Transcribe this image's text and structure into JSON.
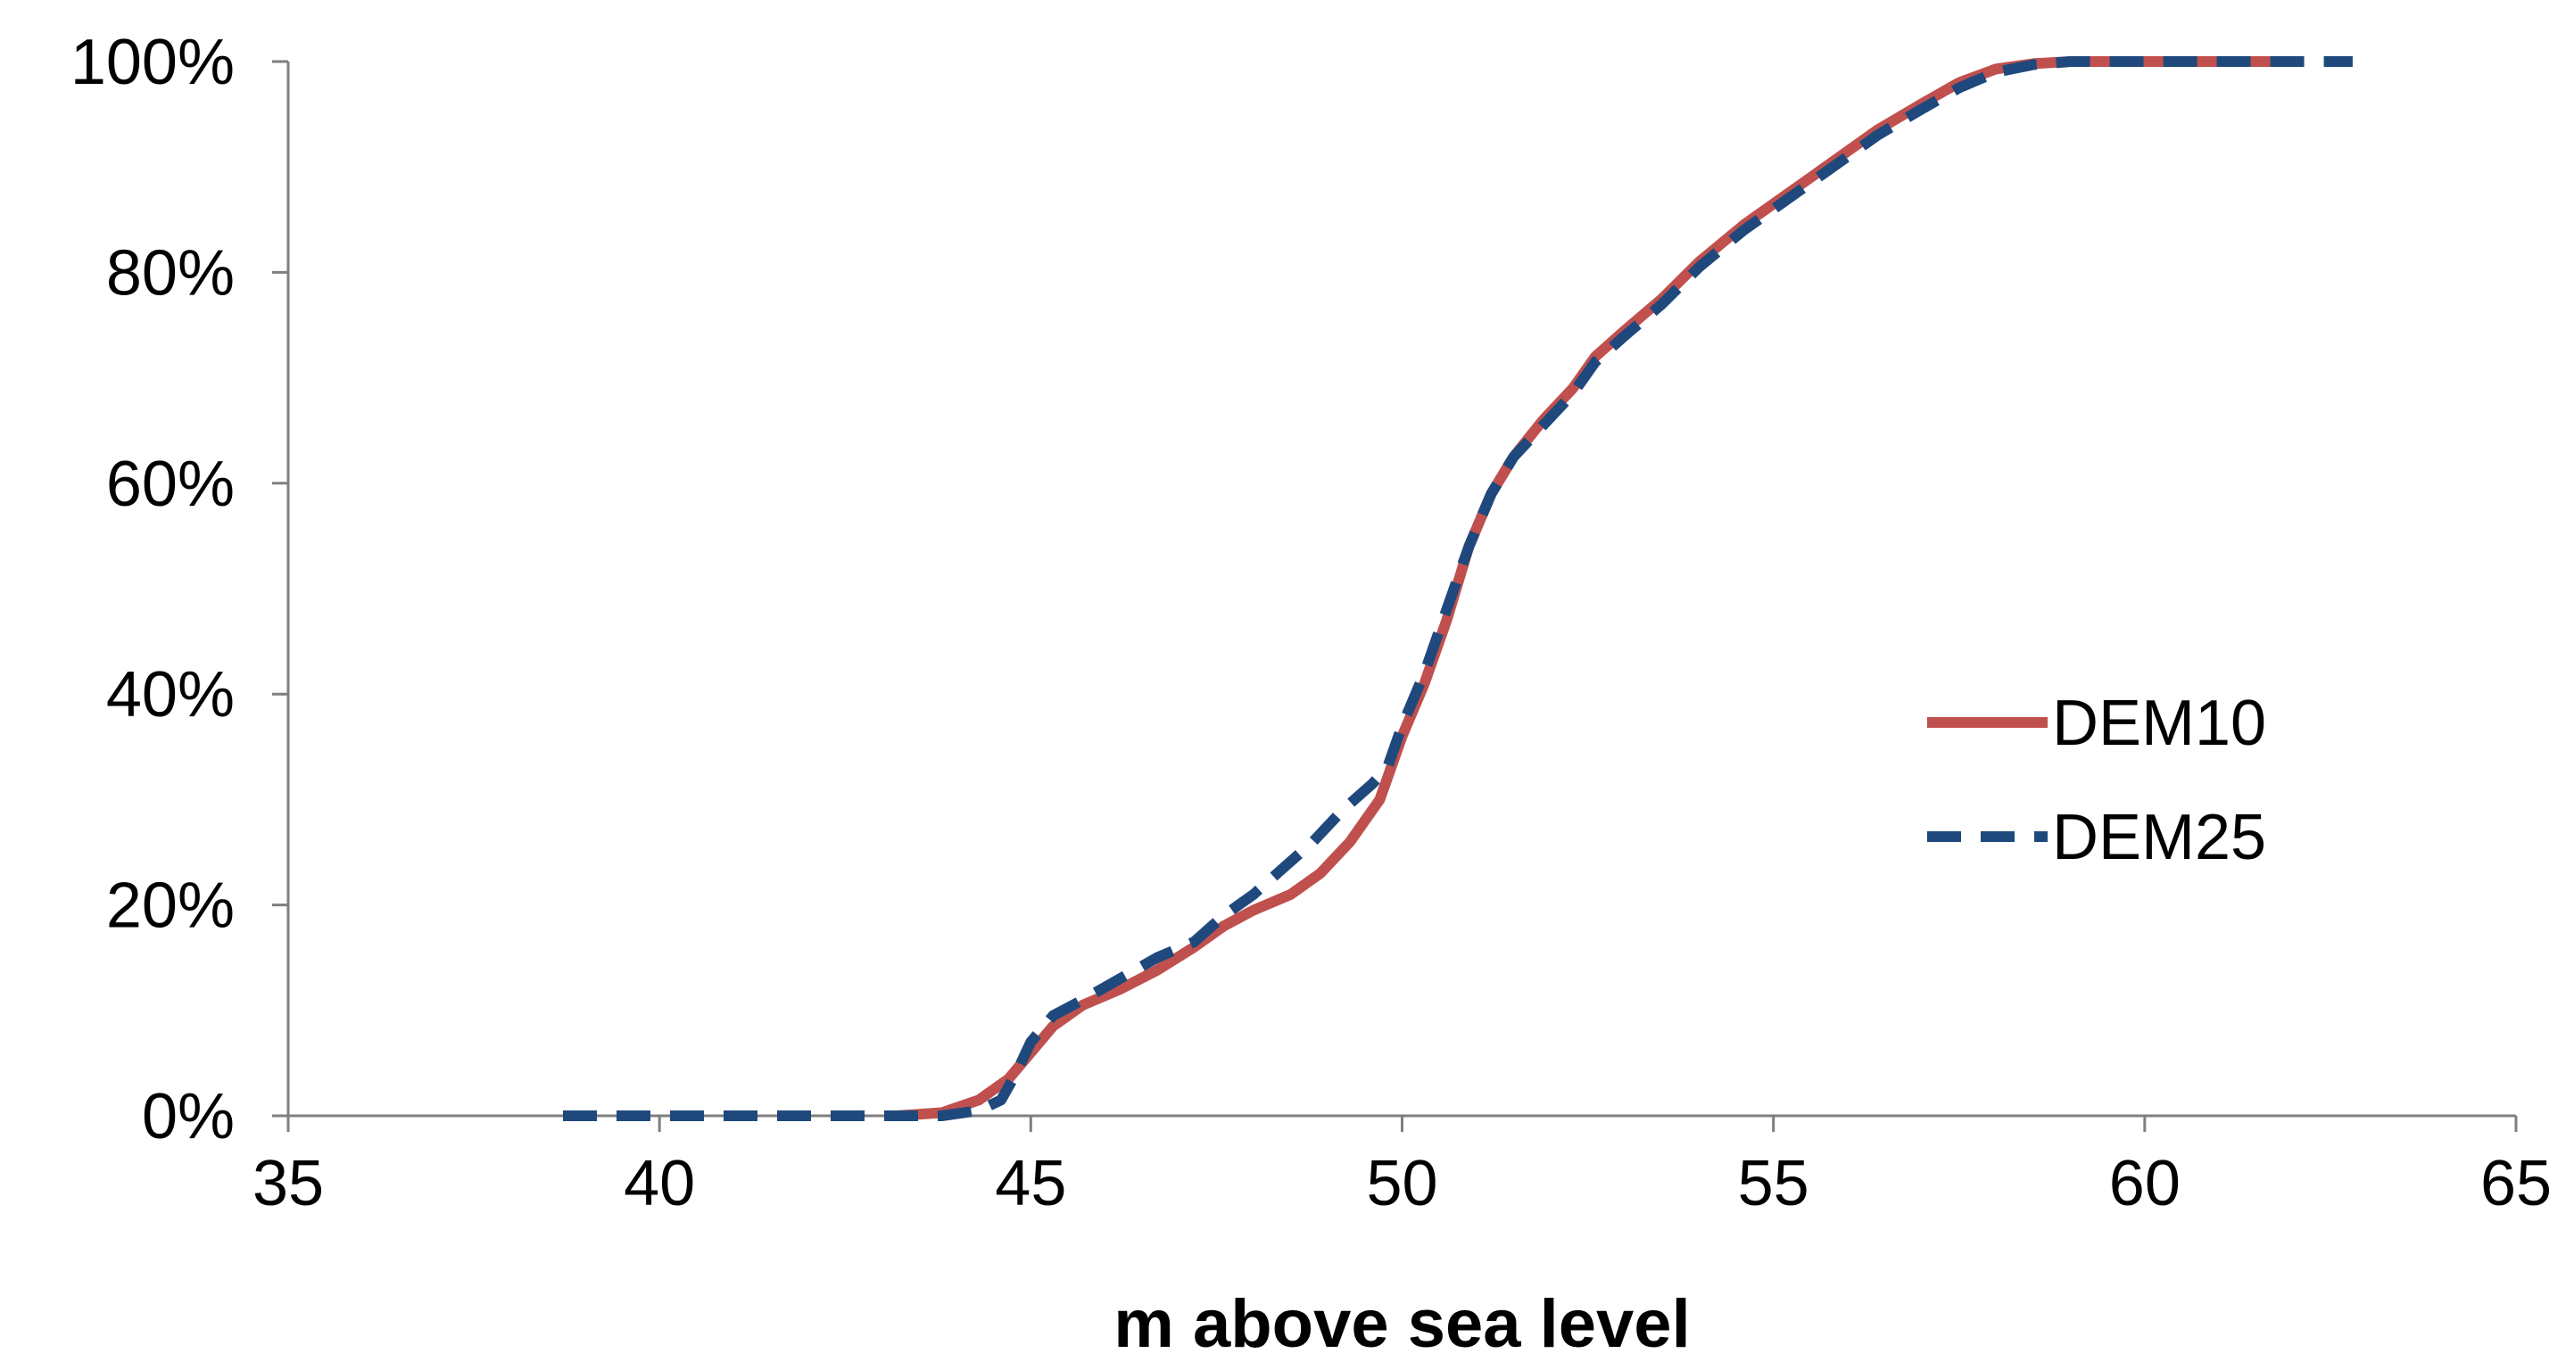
{
  "chart_data": {
    "type": "line",
    "title": "",
    "xlabel": "m above sea level",
    "ylabel": "",
    "xlim": [
      35,
      65
    ],
    "ylim": [
      0,
      1
    ],
    "x_ticks": [
      35,
      40,
      45,
      50,
      55,
      60,
      65
    ],
    "x_tick_labels": [
      "35",
      "40",
      "45",
      "50",
      "55",
      "60",
      "65"
    ],
    "y_ticks": [
      0,
      0.2,
      0.4,
      0.6,
      0.8,
      1.0
    ],
    "y_tick_labels": [
      "0%",
      "20%",
      "40%",
      "60%",
      "80%",
      "100%"
    ],
    "grid": false,
    "legend_position": "right",
    "series": [
      {
        "name": "DEM10",
        "color": "#c0504d",
        "dash": "solid",
        "x": [
          43.2,
          43.8,
          44.3,
          44.7,
          45.0,
          45.3,
          45.7,
          46.2,
          46.7,
          47.2,
          47.6,
          48.0,
          48.5,
          48.9,
          49.3,
          49.7,
          50.0,
          50.3,
          50.6,
          50.9,
          51.2,
          51.5,
          51.9,
          52.3,
          52.6,
          53.0,
          53.5,
          54.0,
          54.6,
          55.2,
          55.8,
          56.4,
          57.0,
          57.5,
          58.0,
          58.5,
          59.0,
          60.0,
          61.0,
          62.0
        ],
        "y": [
          0.0,
          0.003,
          0.015,
          0.035,
          0.06,
          0.085,
          0.105,
          0.12,
          0.138,
          0.16,
          0.18,
          0.195,
          0.21,
          0.23,
          0.26,
          0.3,
          0.36,
          0.41,
          0.47,
          0.54,
          0.59,
          0.625,
          0.66,
          0.69,
          0.72,
          0.745,
          0.775,
          0.81,
          0.845,
          0.875,
          0.905,
          0.935,
          0.96,
          0.98,
          0.993,
          0.998,
          1.0,
          1.0,
          1.0,
          1.0
        ]
      },
      {
        "name": "DEM25",
        "color": "#1f497d",
        "dash": "dashed",
        "x": [
          38.7,
          39.5,
          40.5,
          41.5,
          42.5,
          43.2,
          43.8,
          44.3,
          44.6,
          44.8,
          45.0,
          45.3,
          45.7,
          46.2,
          46.7,
          47.2,
          47.6,
          48.0,
          48.4,
          48.8,
          49.2,
          49.6,
          49.8,
          50.0,
          50.3,
          50.6,
          50.9,
          51.2,
          51.5,
          51.9,
          52.3,
          52.6,
          53.0,
          53.5,
          54.0,
          54.6,
          55.2,
          55.8,
          56.4,
          57.0,
          57.5,
          58.0,
          58.5,
          59.0,
          60.0,
          61.0,
          62.0,
          62.8
        ],
        "y": [
          0.0,
          0.0,
          0.0,
          0.0,
          0.0,
          0.0,
          0.0,
          0.005,
          0.015,
          0.04,
          0.07,
          0.095,
          0.11,
          0.13,
          0.15,
          0.165,
          0.19,
          0.21,
          0.235,
          0.26,
          0.29,
          0.315,
          0.33,
          0.37,
          0.42,
          0.48,
          0.54,
          0.59,
          0.625,
          0.655,
          0.685,
          0.715,
          0.74,
          0.77,
          0.805,
          0.84,
          0.87,
          0.9,
          0.93,
          0.955,
          0.975,
          0.99,
          0.997,
          1.0,
          1.0,
          1.0,
          1.0,
          1.0
        ]
      }
    ]
  }
}
